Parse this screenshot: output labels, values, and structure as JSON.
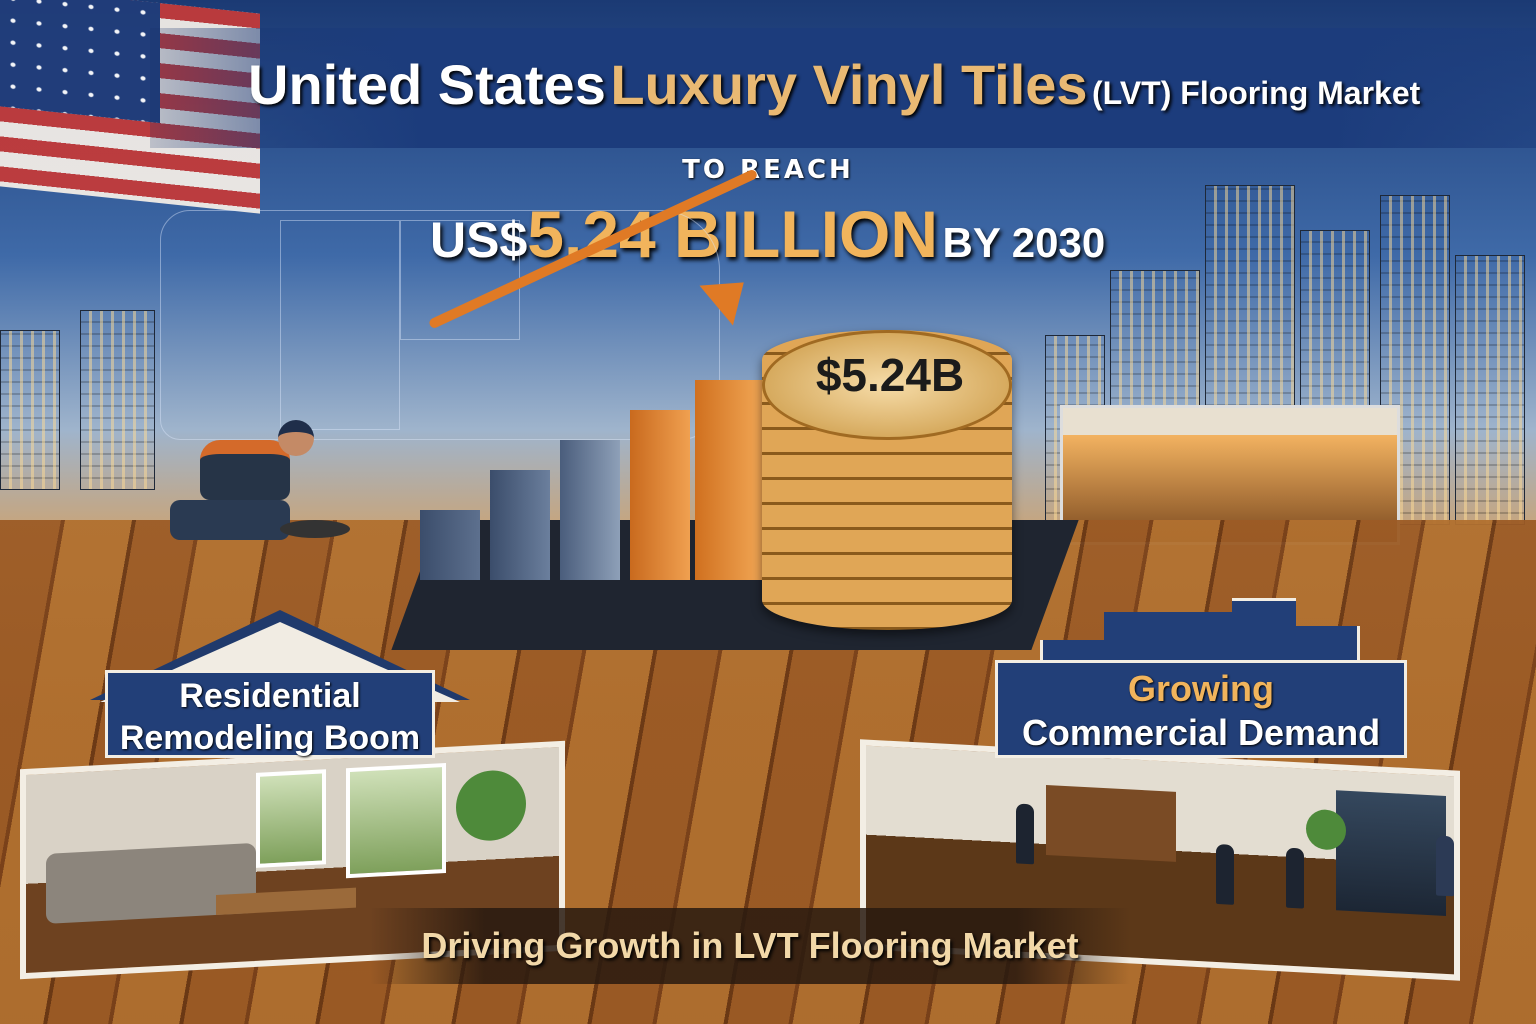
{
  "header": {
    "title_part1": "United States",
    "title_part2": "Luxury Vinyl Tiles",
    "title_part3": "(LVT) Flooring Market",
    "subtitle_lead": "TO REACH",
    "headline_currency": "US$",
    "headline_value": "5.24 BILLION",
    "headline_year": "BY 2030"
  },
  "coin_stack_label": "$5.24B",
  "panels": {
    "residential": {
      "line1": "Residential",
      "line2": "Remodeling Boom"
    },
    "commercial": {
      "line1": "Growing",
      "line2": "Commercial Demand"
    }
  },
  "footer": "Driving Growth in LVT Flooring Market",
  "colors": {
    "navy": "#223f78",
    "gold": "#f1b45c",
    "orange_arrow": "#e07a25",
    "wood": "#9c5b25"
  },
  "icons": [
    "us-flag",
    "us-map",
    "growth-arrow",
    "bar-chart",
    "coin-stack",
    "worker",
    "house",
    "office-building"
  ]
}
